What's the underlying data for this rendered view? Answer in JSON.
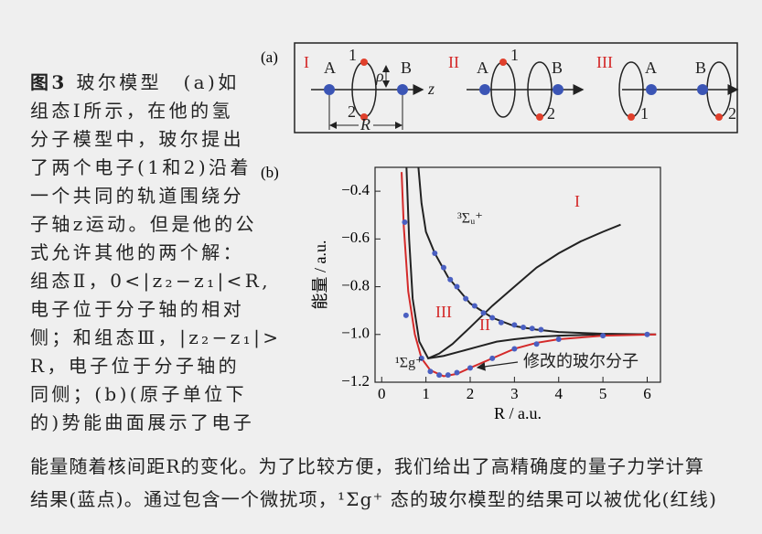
{
  "caption": {
    "label": "图3",
    "lines": [
      "玻尔模型　(a)如",
      "组态Ⅰ所示，在他的氢",
      "分子模型中，玻尔提出",
      "了两个电子(1和2)沿着",
      "一个共同的轨道围绕分",
      "子轴z运动。但是他的公",
      "式允许其他的两个解：",
      "组态Ⅱ，0<|z₂−z₁|<R,",
      "电子位于分子轴的相对",
      "侧；和组态Ⅲ，|z₂−z₁|>",
      "R，电子位于分子轴的",
      "同侧；(b)(原子单位下",
      "的)势能曲面展示了电子",
      "能量随着核间距R的变化。为了比较方便，我们给出了高精确度的量子力学计算",
      "结果(蓝点)。通过包含一个微扰项，¹Σg⁺ 态的玻尔模型的结果可以被优化(红线)"
    ]
  },
  "panel_a": {
    "label": "(a)",
    "configurations": [
      {
        "name": "I",
        "labels": [
          "A",
          "1",
          "ρ",
          "B",
          "z",
          "2",
          "R"
        ]
      },
      {
        "name": "II",
        "labels": [
          "A",
          "1",
          "B",
          "2"
        ]
      },
      {
        "name": "III",
        "labels": [
          "A",
          "B",
          "1",
          "2"
        ]
      }
    ]
  },
  "panel_b": {
    "label": "(b)"
  },
  "chart_data": {
    "type": "line",
    "x_label": "R / a.u.",
    "y_label": "能量 / a.u.",
    "xlim": [
      -0.15,
      6.3
    ],
    "ylim": [
      -1.2,
      -0.3
    ],
    "xticks": [
      0,
      1,
      2,
      3,
      4,
      5,
      6
    ],
    "yticks": [
      {
        "value": -0.4,
        "label": "−0.4"
      },
      {
        "value": -0.6,
        "label": "−0.6"
      },
      {
        "value": -0.8,
        "label": "−0.8"
      },
      {
        "value": -1.0,
        "label": "−1.0"
      },
      {
        "value": -1.2,
        "label": "−1.2"
      }
    ],
    "series": [
      {
        "color": "#222222",
        "x": [
          0.56,
          0.62,
          0.7,
          0.85,
          1.05,
          1.3,
          1.6,
          2,
          2.5,
          3,
          3.5,
          4,
          4.5,
          5,
          5.4
        ],
        "values": [
          -0.3,
          -0.6,
          -0.85,
          -1.03,
          -1.1,
          -1.08,
          -1.04,
          -0.97,
          -0.88,
          -0.8,
          -0.72,
          -0.66,
          -0.61,
          -0.57,
          -0.54
        ]
      },
      {
        "color": "#222222",
        "x": [
          1.05,
          1.4,
          1.8,
          2.2,
          2.6,
          3,
          3.5,
          4,
          5,
          6
        ],
        "values": [
          -1.1,
          -1.09,
          -1.07,
          -1.05,
          -1.03,
          -1.02,
          -1.01,
          -1.005,
          -1.0,
          -1.0
        ]
      },
      {
        "name": "³Σᵤ⁺",
        "color": "#222222",
        "x": [
          0.83,
          0.9,
          1,
          1.2,
          1.5,
          2,
          2.5,
          3,
          3.5,
          4,
          5,
          6.2
        ],
        "values": [
          -0.3,
          -0.45,
          -0.57,
          -0.66,
          -0.76,
          -0.87,
          -0.93,
          -0.965,
          -0.98,
          -0.99,
          -0.997,
          -1.0
        ]
      },
      {
        "name": "¹Σg⁺",
        "color": "#d42a2a",
        "x": [
          0.45,
          0.5,
          0.6,
          0.75,
          0.9,
          1.1,
          1.4,
          1.7,
          2,
          2.5,
          3,
          3.5,
          4,
          5,
          6.2
        ],
        "values": [
          -0.32,
          -0.55,
          -0.82,
          -1.0,
          -1.1,
          -1.15,
          -1.175,
          -1.165,
          -1.14,
          -1.1,
          -1.06,
          -1.035,
          -1.02,
          -1.005,
          -1.0
        ]
      },
      {
        "type": "scatter",
        "color": "#4a5fc1",
        "x": [
          0.52,
          0.55,
          0.9,
          1.1,
          1.3,
          1.5,
          1.7,
          2.0,
          2.5,
          3,
          3.5,
          4,
          5,
          6,
          1.2,
          1.4,
          1.55,
          1.7,
          1.9,
          2.1,
          2.3,
          2.5,
          2.7,
          3,
          3.2,
          3.4,
          3.6
        ],
        "values": [
          -0.53,
          -0.92,
          -1.1,
          -1.155,
          -1.17,
          -1.17,
          -1.16,
          -1.14,
          -1.1,
          -1.06,
          -1.04,
          -1.02,
          -1.005,
          -1.0,
          -0.66,
          -0.72,
          -0.77,
          -0.8,
          -0.85,
          -0.88,
          -0.91,
          -0.93,
          -0.95,
          -0.96,
          -0.97,
          -0.975,
          -0.98
        ]
      }
    ],
    "annotations": [
      {
        "text": "I",
        "color": "#d42a2a"
      },
      {
        "text": "III",
        "color": "#d42a2a"
      },
      {
        "text": "II",
        "color": "#d42a2a"
      },
      {
        "text": "修改的玻尔分子",
        "color": "#222222"
      }
    ]
  }
}
